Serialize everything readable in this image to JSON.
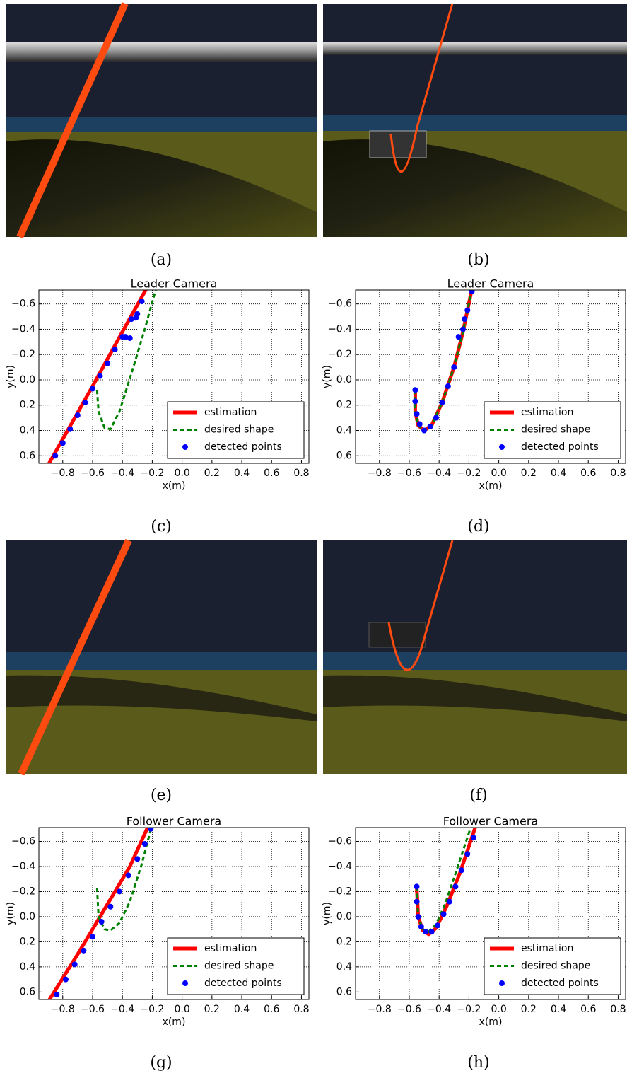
{
  "captions": [
    "(a)",
    "(b)",
    "(c)",
    "(d)",
    "(e)",
    "(f)",
    "(g)",
    "(h)"
  ],
  "chart_data": [
    {
      "type": "line",
      "title": "Leader Camera",
      "x_label": "x(m)",
      "y_label": "y(m)",
      "xlim": [
        -0.96,
        0.85
      ],
      "ylim": [
        -0.71,
        0.66
      ],
      "y_inverted": true,
      "grid": true,
      "legend": "lower right",
      "xticks": [
        {
          "value": -0.8,
          "label": "−0.8"
        },
        {
          "value": -0.6,
          "label": "−0.6"
        },
        {
          "value": -0.4,
          "label": "−0.4"
        },
        {
          "value": -0.2,
          "label": "−0.2"
        },
        {
          "value": 0,
          "label": "0.0"
        },
        0.2,
        0.4,
        0.6,
        0.8
      ],
      "yticks": [
        {
          "value": -0.6,
          "label": "−0.6"
        },
        {
          "value": -0.4,
          "label": "−0.4"
        },
        {
          "value": -0.2,
          "label": "−0.2"
        },
        {
          "value": 0,
          "label": "0.0"
        },
        0.2,
        0.4,
        0.6
      ],
      "series": [
        {
          "name": "estimation",
          "color": "#ff0000",
          "style": "solid",
          "x": [
            -0.92,
            -0.6,
            -0.4,
            -0.23
          ],
          "values": [
            0.72,
            0.05,
            -0.38,
            -0.74
          ]
        },
        {
          "name": "desired shape",
          "color": "#008000",
          "style": "dashed",
          "x": [
            -0.57,
            -0.56,
            -0.52,
            -0.48,
            -0.42,
            -0.34,
            -0.25,
            -0.17
          ],
          "values": [
            0.08,
            0.25,
            0.38,
            0.39,
            0.25,
            -0.05,
            -0.4,
            -0.74
          ]
        },
        {
          "name": "detected points",
          "color": "#0000ff",
          "style": "points",
          "x": [
            -0.9,
            -0.85,
            -0.8,
            -0.75,
            -0.7,
            -0.65,
            -0.6,
            -0.55,
            -0.5,
            -0.45,
            -0.4,
            -0.38,
            -0.35,
            -0.34,
            -0.31,
            -0.3,
            -0.27
          ],
          "values": [
            0.7,
            0.6,
            0.5,
            0.39,
            0.28,
            0.18,
            0.07,
            -0.03,
            -0.13,
            -0.24,
            -0.34,
            -0.34,
            -0.33,
            -0.48,
            -0.49,
            -0.52,
            -0.62
          ]
        }
      ]
    },
    {
      "type": "line",
      "title": "Leader Camera",
      "x_label": "x(m)",
      "y_label": "y(m)",
      "xlim": [
        -0.96,
        0.85
      ],
      "ylim": [
        -0.71,
        0.66
      ],
      "y_inverted": true,
      "grid": true,
      "legend": "lower right",
      "xticks": [
        {
          "value": -0.8,
          "label": "−0.8"
        },
        {
          "value": -0.6,
          "label": "−0.6"
        },
        {
          "value": -0.4,
          "label": "−0.4"
        },
        {
          "value": -0.2,
          "label": "−0.2"
        },
        {
          "value": 0,
          "label": "0.0"
        },
        0.2,
        0.4,
        0.6,
        0.8
      ],
      "yticks": [
        {
          "value": -0.6,
          "label": "−0.6"
        },
        {
          "value": -0.4,
          "label": "−0.4"
        },
        {
          "value": -0.2,
          "label": "−0.2"
        },
        {
          "value": 0,
          "label": "0.0"
        },
        0.2,
        0.4,
        0.6
      ],
      "series": [
        {
          "name": "estimation",
          "color": "#ff0000",
          "style": "solid",
          "x": [
            -0.56,
            -0.56,
            -0.54,
            -0.5,
            -0.45,
            -0.38,
            -0.3,
            -0.24,
            -0.18
          ],
          "values": [
            0.08,
            0.25,
            0.36,
            0.4,
            0.36,
            0.18,
            -0.1,
            -0.38,
            -0.72
          ]
        },
        {
          "name": "desired shape",
          "color": "#008000",
          "style": "dashed",
          "x": [
            -0.56,
            -0.56,
            -0.54,
            -0.5,
            -0.45,
            -0.38,
            -0.3,
            -0.24,
            -0.18
          ],
          "values": [
            0.08,
            0.25,
            0.36,
            0.4,
            0.36,
            0.18,
            -0.1,
            -0.38,
            -0.72
          ]
        },
        {
          "name": "detected points",
          "color": "#0000ff",
          "style": "points",
          "x": [
            -0.56,
            -0.56,
            -0.55,
            -0.53,
            -0.5,
            -0.46,
            -0.42,
            -0.38,
            -0.34,
            -0.3,
            -0.27,
            -0.24,
            -0.23,
            -0.21,
            -0.18
          ],
          "values": [
            0.08,
            0.17,
            0.27,
            0.35,
            0.4,
            0.37,
            0.3,
            0.18,
            0.05,
            -0.1,
            -0.34,
            -0.4,
            -0.48,
            -0.55,
            -0.7
          ]
        }
      ]
    },
    {
      "type": "line",
      "title": "Follower Camera",
      "x_label": "x(m)",
      "y_label": "y(m)",
      "xlim": [
        -0.96,
        0.85
      ],
      "ylim": [
        -0.71,
        0.66
      ],
      "y_inverted": true,
      "grid": true,
      "legend": "lower right",
      "xticks": [
        {
          "value": -0.8,
          "label": "−0.8"
        },
        {
          "value": -0.6,
          "label": "−0.6"
        },
        {
          "value": -0.4,
          "label": "−0.4"
        },
        {
          "value": -0.2,
          "label": "−0.2"
        },
        {
          "value": 0,
          "label": "0.0"
        },
        0.2,
        0.4,
        0.6,
        0.8
      ],
      "yticks": [
        {
          "value": -0.6,
          "label": "−0.6"
        },
        {
          "value": -0.4,
          "label": "−0.4"
        },
        {
          "value": -0.2,
          "label": "−0.2"
        },
        {
          "value": 0,
          "label": "0.0"
        },
        0.2,
        0.4,
        0.6
      ],
      "series": [
        {
          "name": "estimation",
          "color": "#ff0000",
          "style": "solid",
          "x": [
            -0.92,
            -0.7,
            -0.5,
            -0.35,
            -0.22
          ],
          "values": [
            0.72,
            0.3,
            -0.1,
            -0.4,
            -0.74
          ]
        },
        {
          "name": "desired shape",
          "color": "#008000",
          "style": "dashed",
          "x": [
            -0.57,
            -0.56,
            -0.52,
            -0.48,
            -0.42,
            -0.35,
            -0.27,
            -0.2
          ],
          "values": [
            -0.23,
            0.0,
            0.1,
            0.11,
            0.05,
            -0.12,
            -0.42,
            -0.74
          ]
        },
        {
          "name": "detected points",
          "color": "#0000ff",
          "style": "points",
          "x": [
            -0.89,
            -0.84,
            -0.78,
            -0.72,
            -0.66,
            -0.6,
            -0.54,
            -0.48,
            -0.42,
            -0.36,
            -0.3,
            -0.25,
            -0.21
          ],
          "values": [
            0.72,
            0.62,
            0.5,
            0.38,
            0.27,
            0.16,
            0.04,
            -0.08,
            -0.2,
            -0.33,
            -0.46,
            -0.58,
            -0.7
          ]
        }
      ]
    },
    {
      "type": "line",
      "title": "Follower Camera",
      "x_label": "x(m)",
      "y_label": "y(m)",
      "xlim": [
        -0.96,
        0.85
      ],
      "ylim": [
        -0.71,
        0.66
      ],
      "y_inverted": true,
      "grid": true,
      "legend": "lower right",
      "xticks": [
        {
          "value": -0.8,
          "label": "−0.8"
        },
        {
          "value": -0.6,
          "label": "−0.6"
        },
        {
          "value": -0.4,
          "label": "−0.4"
        },
        {
          "value": -0.2,
          "label": "−0.2"
        },
        {
          "value": 0,
          "label": "0.0"
        },
        0.2,
        0.4,
        0.6,
        0.8
      ],
      "yticks": [
        {
          "value": -0.6,
          "label": "−0.6"
        },
        {
          "value": -0.4,
          "label": "−0.4"
        },
        {
          "value": -0.2,
          "label": "−0.2"
        },
        {
          "value": 0,
          "label": "0.0"
        },
        0.2,
        0.4,
        0.6
      ],
      "series": [
        {
          "name": "estimation",
          "color": "#ff0000",
          "style": "solid",
          "x": [
            -0.55,
            -0.54,
            -0.51,
            -0.47,
            -0.42,
            -0.35,
            -0.26,
            -0.15
          ],
          "values": [
            -0.24,
            0.0,
            0.11,
            0.14,
            0.09,
            -0.08,
            -0.35,
            -0.74
          ]
        },
        {
          "name": "desired shape",
          "color": "#008000",
          "style": "dashed",
          "x": [
            -0.55,
            -0.54,
            -0.51,
            -0.47,
            -0.42,
            -0.36,
            -0.28,
            -0.18
          ],
          "values": [
            -0.24,
            0.0,
            0.1,
            0.12,
            0.06,
            -0.1,
            -0.38,
            -0.74
          ]
        },
        {
          "name": "detected points",
          "color": "#0000ff",
          "style": "points",
          "x": [
            -0.55,
            -0.55,
            -0.54,
            -0.52,
            -0.49,
            -0.45,
            -0.41,
            -0.37,
            -0.33,
            -0.29,
            -0.25,
            -0.21,
            -0.17,
            -0.14
          ],
          "values": [
            -0.24,
            -0.12,
            0.0,
            0.08,
            0.12,
            0.12,
            0.07,
            -0.02,
            -0.12,
            -0.24,
            -0.37,
            -0.5,
            -0.63,
            -0.73
          ]
        }
      ]
    }
  ]
}
